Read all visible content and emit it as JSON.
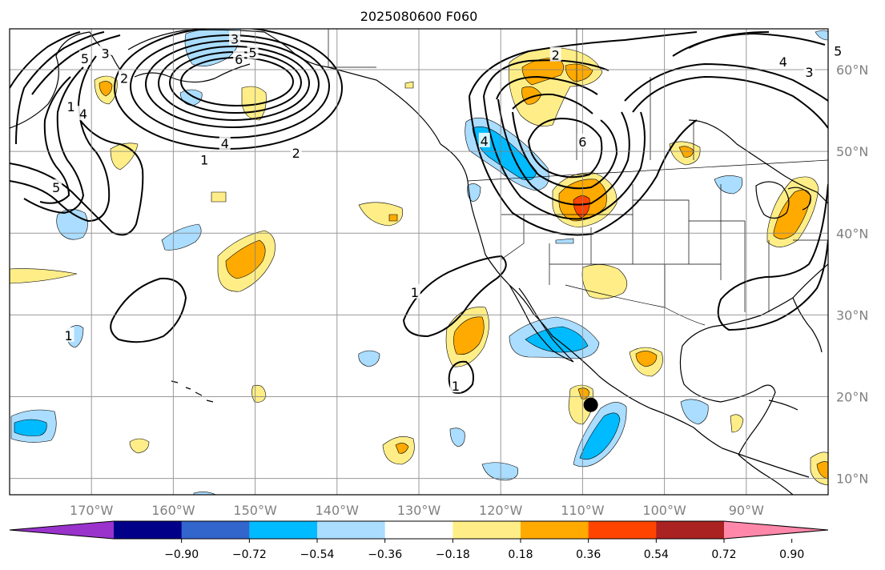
{
  "title": "2025080600 F060",
  "map": {
    "lon_range": [
      -180,
      -80
    ],
    "lat_range": [
      8,
      65
    ],
    "lon_ticks": [
      {
        "value": -170,
        "label": "170°W"
      },
      {
        "value": -160,
        "label": "160°W"
      },
      {
        "value": -150,
        "label": "150°W"
      },
      {
        "value": -140,
        "label": "140°W"
      },
      {
        "value": -130,
        "label": "130°W"
      },
      {
        "value": -120,
        "label": "120°W"
      },
      {
        "value": -110,
        "label": "110°W"
      },
      {
        "value": -100,
        "label": "100°W"
      },
      {
        "value": -90,
        "label": "90°W"
      }
    ],
    "lat_ticks": [
      {
        "value": 60,
        "label": "60°N"
      },
      {
        "value": 50,
        "label": "50°N"
      },
      {
        "value": 40,
        "label": "40°N"
      },
      {
        "value": 30,
        "label": "30°N"
      },
      {
        "value": 20,
        "label": "20°N"
      },
      {
        "value": 10,
        "label": "10°N"
      }
    ],
    "grid": true,
    "marker": {
      "lon": -109,
      "lat": 19,
      "color": "#000000"
    }
  },
  "colorbar": {
    "colors": [
      "#9933cc",
      "#000088",
      "#3366cc",
      "#00bbff",
      "#aaddff",
      "#ffffff",
      "#ffee88",
      "#ffaa00",
      "#ff4400",
      "#aa2222",
      "#ff88aa"
    ],
    "tick_labels": [
      "−0.90",
      "−0.72",
      "−0.54",
      "−0.36",
      "−0.18",
      "0.18",
      "0.36",
      "0.54",
      "0.72",
      "0.90"
    ]
  },
  "contour_labels": [
    {
      "text": "3",
      "lon": -152.5,
      "lat": 63.8
    },
    {
      "text": "5",
      "lon": -150.3,
      "lat": 62.1
    },
    {
      "text": "6",
      "lon": -152.0,
      "lat": 61.3
    },
    {
      "text": "4",
      "lon": -153.7,
      "lat": 51.0
    },
    {
      "text": "1",
      "lon": -156.2,
      "lat": 49.0
    },
    {
      "text": "2",
      "lon": -145.0,
      "lat": 49.8
    },
    {
      "text": "5",
      "lon": -170.8,
      "lat": 61.4
    },
    {
      "text": "3",
      "lon": -168.3,
      "lat": 62.0
    },
    {
      "text": "2",
      "lon": -166.0,
      "lat": 59.0
    },
    {
      "text": "4",
      "lon": -171.0,
      "lat": 54.6
    },
    {
      "text": "5",
      "lon": -174.3,
      "lat": 45.6
    },
    {
      "text": "1",
      "lon": -172.5,
      "lat": 55.5
    },
    {
      "text": "2",
      "lon": -113.3,
      "lat": 61.8
    },
    {
      "text": "6",
      "lon": -110.0,
      "lat": 51.2
    },
    {
      "text": "4",
      "lon": -85.5,
      "lat": 61.0
    },
    {
      "text": "3",
      "lon": -82.3,
      "lat": 59.7
    },
    {
      "text": "5",
      "lon": -78.8,
      "lat": 62.3
    },
    {
      "text": "1",
      "lon": -130.5,
      "lat": 32.8
    },
    {
      "text": "1",
      "lon": -172.8,
      "lat": 27.5
    },
    {
      "text": "1",
      "lon": -125.5,
      "lat": 21.3
    },
    {
      "text": "4",
      "lon": -122.0,
      "lat": 51.3
    }
  ]
}
